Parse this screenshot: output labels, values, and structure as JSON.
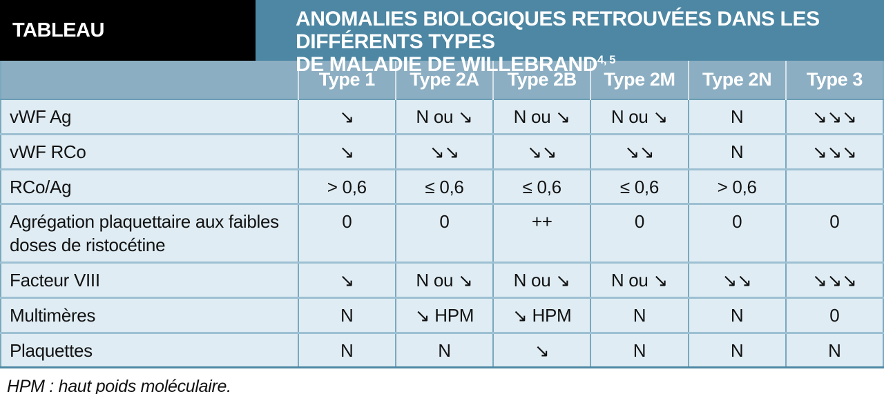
{
  "header": {
    "badge": "TABLEAU",
    "title_line1": "ANOMALIES BIOLOGIQUES RETROUVÉES DANS LES DIFFÉRENTS TYPES",
    "title_line2": "DE MALADIE DE WILLEBRAND",
    "title_superscript": "4, 5"
  },
  "table": {
    "columns": [
      "Type 1",
      "Type 2A",
      "Type 2B",
      "Type 2M",
      "Type 2N",
      "Type 3"
    ],
    "rows": [
      {
        "label": "vWF Ag",
        "values": [
          "↘",
          "N ou ↘",
          "N ou ↘",
          "N ou ↘",
          "N",
          "↘↘↘"
        ]
      },
      {
        "label": "vWF RCo",
        "values": [
          "↘",
          "↘↘",
          "↘↘",
          "↘↘",
          "N",
          "↘↘↘"
        ]
      },
      {
        "label": "RCo/Ag",
        "values": [
          "> 0,6",
          "≤ 0,6",
          "≤ 0,6",
          "≤ 0,6",
          "> 0,6",
          ""
        ]
      },
      {
        "label": "Agrégation plaquettaire aux faibles doses de ristocétine",
        "values": [
          "0",
          "0",
          "++",
          "0",
          "0",
          "0"
        ]
      },
      {
        "label": "Facteur VIII",
        "values": [
          "↘",
          "N ou ↘",
          "N ou ↘",
          "N ou ↘",
          "↘↘",
          "↘↘↘"
        ]
      },
      {
        "label": "Multimères",
        "values": [
          "N",
          "↘ HPM",
          "↘ HPM",
          "N",
          "N",
          "0"
        ]
      },
      {
        "label": "Plaquettes",
        "values": [
          "N",
          "N",
          "↘",
          "N",
          "N",
          "N"
        ]
      }
    ]
  },
  "footer": {
    "note": "HPM : haut poids moléculaire."
  },
  "colors": {
    "band_teal": "#4d87a3",
    "badge_black": "#000000",
    "column_header_blue": "#8caec2",
    "row_background": "#dfecf3",
    "grid_line_blue": "#7aa8be",
    "row_separator": "#9dc0d2",
    "text_dark": "#121212",
    "text_white": "#ffffff"
  }
}
